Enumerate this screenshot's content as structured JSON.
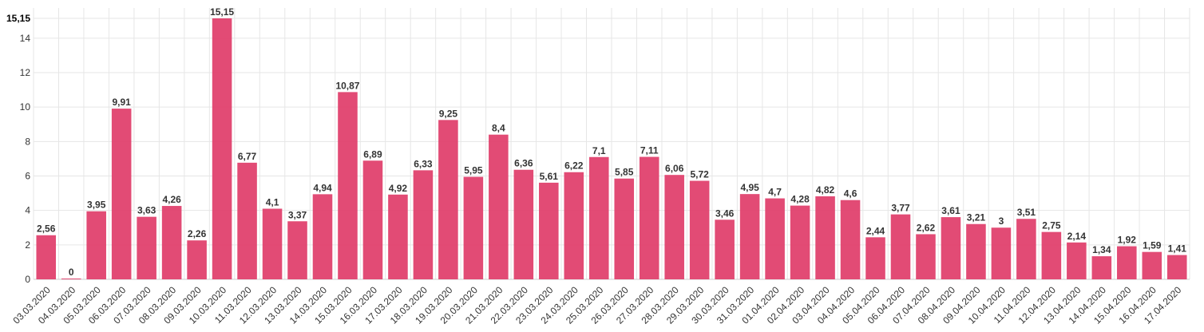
{
  "chart_data": {
    "type": "bar",
    "categories": [
      "03.03.2020",
      "04.03.2020",
      "05.03.2020",
      "06.03.2020",
      "07.03.2020",
      "08.03.2020",
      "09.03.2020",
      "10.03.2020",
      "11.03.2020",
      "12.03.2020",
      "13.03.2020",
      "14.03.2020",
      "15.03.2020",
      "16.03.2020",
      "17.03.2020",
      "18.03.2020",
      "19.03.2020",
      "20.03.2020",
      "21.03.2020",
      "22.03.2020",
      "23.03.2020",
      "24.03.2020",
      "25.03.2020",
      "26.03.2020",
      "27.03.2020",
      "28.03.2020",
      "29.03.2020",
      "30.03.2020",
      "31.03.2020",
      "01.04.2020",
      "02.04.2020",
      "03.04.2020",
      "04.04.2020",
      "05.04.2020",
      "06.04.2020",
      "07.04.2020",
      "08.04.2020",
      "09.04.2020",
      "10.04.2020",
      "11.04.2020",
      "12.04.2020",
      "13.04.2020",
      "14.04.2020",
      "15.04.2020",
      "16.04.2020",
      "17.04.2020"
    ],
    "values": [
      2.56,
      0,
      3.95,
      9.91,
      3.63,
      4.26,
      2.26,
      15.15,
      6.77,
      4.1,
      3.37,
      4.94,
      10.87,
      6.89,
      4.92,
      6.33,
      9.25,
      5.95,
      8.4,
      6.36,
      5.61,
      6.22,
      7.1,
      5.85,
      7.11,
      6.06,
      5.72,
      3.46,
      4.95,
      4.7,
      4.28,
      4.82,
      4.6,
      2.44,
      3.77,
      2.62,
      3.61,
      3.21,
      3,
      3.51,
      2.75,
      2.14,
      1.34,
      1.92,
      1.59,
      1.41
    ],
    "value_labels": [
      "2,56",
      "0",
      "3,95",
      "9,91",
      "3,63",
      "4,26",
      "2,26",
      "15,15",
      "6,77",
      "4,1",
      "3,37",
      "4,94",
      "10,87",
      "6,89",
      "4,92",
      "6,33",
      "9,25",
      "5,95",
      "8,4",
      "6,36",
      "5,61",
      "6,22",
      "7,1",
      "5,85",
      "7,11",
      "6,06",
      "5,72",
      "3,46",
      "4,95",
      "4,7",
      "4,28",
      "4,82",
      "4,6",
      "2,44",
      "3,77",
      "2,62",
      "3,61",
      "3,21",
      "3",
      "3,51",
      "2,75",
      "2,14",
      "1,34",
      "1,92",
      "1,59",
      "1,41"
    ],
    "y_ticks": [
      "0",
      "2",
      "4",
      "6",
      "8",
      "10",
      "12",
      "14"
    ],
    "y_max_label": "15,15",
    "ylim": [
      0,
      15.15
    ],
    "xlabel": "",
    "ylabel": "",
    "title": "",
    "grid": true,
    "legend": "none",
    "bar_color": "#e0416e"
  }
}
